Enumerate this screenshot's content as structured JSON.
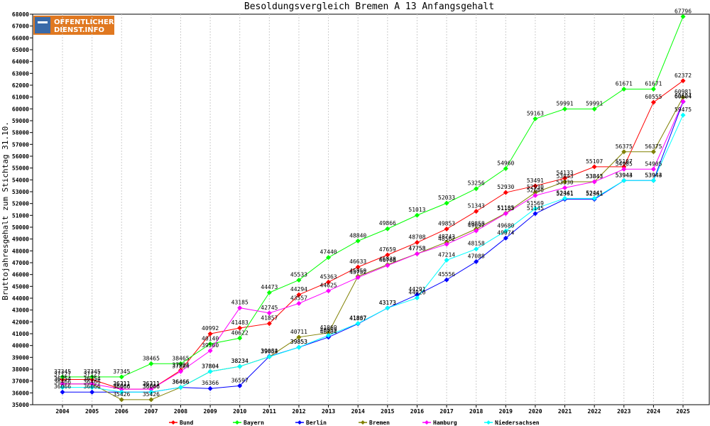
{
  "chart_data": {
    "type": "line",
    "title": "Besoldungsvergleich Bremen A 13 Anfangsgehalt",
    "xlabel": "",
    "ylabel": "Bruttojahresgehalt zum Stichtag 31.10.",
    "ylim": [
      35000,
      68000
    ],
    "ytick_step": 1000,
    "legend_position": "bottom",
    "categories": [
      "2004",
      "2005",
      "2006",
      "2007",
      "2008",
      "2009",
      "2010",
      "2011",
      "2012",
      "2013",
      "2014",
      "2015",
      "2016",
      "2017",
      "2018",
      "2019",
      "2020",
      "2021",
      "2022",
      "2023",
      "2024",
      "2025"
    ],
    "series": [
      {
        "name": "Bund",
        "color": "#ff0000",
        "values": [
          37127,
          37127,
          36311,
          36311,
          37904,
          40992,
          41483,
          41857,
          44294,
          45363,
          46633,
          47659,
          48708,
          49853,
          51343,
          52930,
          53491,
          54133,
          55107,
          55107,
          60555,
          62372
        ]
      },
      {
        "name": "Bayern",
        "color": "#00ff00",
        "values": [
          37345,
          37345,
          37345,
          38465,
          38465,
          40140,
          40622,
          44473,
          45533,
          47440,
          48840,
          49866,
          51013,
          52033,
          53256,
          54960,
          59163,
          59991,
          59991,
          61671,
          61671,
          67796
        ]
      },
      {
        "name": "Berlin",
        "color": "#0000ff",
        "values": [
          36066,
          36066,
          36066,
          36066,
          36466,
          36366,
          36597,
          39084,
          39853,
          40704,
          41837,
          43173,
          44291,
          45556,
          47088,
          49074,
          51145,
          52361,
          52361,
          53944,
          53944,
          60604
        ]
      },
      {
        "name": "Bremen",
        "color": "#808000",
        "values": [
          36754,
          36754,
          35426,
          35426,
          36466,
          37804,
          38234,
          39053,
          40711,
          41069,
          45850,
          46838,
          47758,
          48743,
          49858,
          51185,
          52930,
          53843,
          53843,
          56375,
          56375,
          60981
        ]
      },
      {
        "name": "Hamburg",
        "color": "#ff00ff",
        "values": [
          36754,
          36754,
          36311,
          36311,
          37804,
          39560,
          43185,
          42745,
          43557,
          44625,
          45752,
          46768,
          47753,
          48562,
          49697,
          51153,
          52680,
          53330,
          53843,
          54905,
          54905,
          60624
        ]
      },
      {
        "name": "Niedersachsen",
        "color": "#00ffff",
        "values": [
          36466,
          36466,
          36066,
          36066,
          36466,
          37804,
          38234,
          39053,
          39853,
          40859,
          41867,
          43173,
          44020,
          47214,
          48158,
          49680,
          51569,
          52441,
          52441,
          53943,
          53943,
          59475
        ]
      }
    ]
  },
  "logo": {
    "line1": "OFFENTLICHER",
    "line2": "DIENST.INFO"
  }
}
